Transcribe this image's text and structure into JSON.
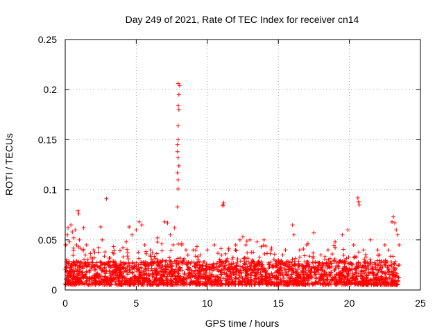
{
  "chart_data": {
    "type": "scatter",
    "title": "Day 249 of 2021, Rate Of TEC Index for receiver cn14",
    "xlabel": "GPS time / hours",
    "ylabel": "ROTI / TECUs",
    "xlim": [
      0,
      25
    ],
    "ylim": [
      0,
      0.25
    ],
    "x_ticks": [
      0,
      5,
      10,
      15,
      20,
      25
    ],
    "y_ticks": [
      0,
      0.05,
      0.1,
      0.15,
      0.2,
      0.25
    ],
    "x_tick_labels": [
      "0",
      "5",
      "10",
      "15",
      "20",
      "25"
    ],
    "y_tick_labels": [
      "0",
      "0.05",
      "0.1",
      "0.15",
      "0.2",
      "0.25"
    ],
    "grid": true,
    "marker": "+",
    "color": "#ff0000",
    "data_extent_x": [
      0,
      23.5
    ],
    "series": [
      {
        "name": "ROTI",
        "points": [
          [
            0.05,
            0.045
          ],
          [
            0.1,
            0.03
          ],
          [
            0.15,
            0.055
          ],
          [
            0.2,
            0.062
          ],
          [
            0.3,
            0.048
          ],
          [
            0.4,
            0.065
          ],
          [
            0.5,
            0.058
          ],
          [
            0.6,
            0.052
          ],
          [
            0.7,
            0.06
          ],
          [
            0.8,
            0.045
          ],
          [
            0.9,
            0.079
          ],
          [
            0.95,
            0.076
          ],
          [
            1.0,
            0.05
          ],
          [
            1.3,
            0.062
          ],
          [
            1.5,
            0.045
          ],
          [
            2.0,
            0.04
          ],
          [
            2.5,
            0.063
          ],
          [
            2.6,
            0.05
          ],
          [
            2.8,
            0.038
          ],
          [
            2.9,
            0.091
          ],
          [
            4.3,
            0.048
          ],
          [
            4.5,
            0.063
          ],
          [
            4.7,
            0.055
          ],
          [
            5.0,
            0.06
          ],
          [
            5.2,
            0.068
          ],
          [
            5.4,
            0.065
          ],
          [
            5.6,
            0.045
          ],
          [
            6.0,
            0.04
          ],
          [
            6.5,
            0.052
          ],
          [
            6.8,
            0.046
          ],
          [
            7.0,
            0.068
          ],
          [
            7.2,
            0.067
          ],
          [
            7.4,
            0.055
          ],
          [
            7.6,
            0.045
          ],
          [
            7.7,
            0.062
          ],
          [
            7.9,
            0.083
          ],
          [
            7.95,
            0.101
          ],
          [
            7.95,
            0.11
          ],
          [
            7.9,
            0.117
          ],
          [
            8.0,
            0.124
          ],
          [
            7.95,
            0.132
          ],
          [
            7.9,
            0.138
          ],
          [
            7.95,
            0.15
          ],
          [
            7.9,
            0.145
          ],
          [
            7.95,
            0.164
          ],
          [
            8.0,
            0.18
          ],
          [
            7.95,
            0.184
          ],
          [
            8.0,
            0.195
          ],
          [
            8.05,
            0.204
          ],
          [
            7.95,
            0.206
          ],
          [
            8.2,
            0.045
          ],
          [
            8.5,
            0.04
          ],
          [
            9.0,
            0.04
          ],
          [
            9.5,
            0.035
          ],
          [
            10.0,
            0.04
          ],
          [
            10.5,
            0.045
          ],
          [
            11.1,
            0.084
          ],
          [
            11.15,
            0.087
          ],
          [
            11.1,
            0.085
          ],
          [
            11.5,
            0.04
          ],
          [
            12.0,
            0.045
          ],
          [
            12.3,
            0.05
          ],
          [
            12.5,
            0.053
          ],
          [
            13.0,
            0.05
          ],
          [
            13.5,
            0.048
          ],
          [
            14.0,
            0.05
          ],
          [
            14.5,
            0.04
          ],
          [
            15.0,
            0.03
          ],
          [
            15.5,
            0.04
          ],
          [
            16.0,
            0.065
          ],
          [
            16.1,
            0.055
          ],
          [
            16.5,
            0.04
          ],
          [
            17.0,
            0.045
          ],
          [
            17.5,
            0.057
          ],
          [
            18.0,
            0.035
          ],
          [
            18.5,
            0.04
          ],
          [
            19.0,
            0.048
          ],
          [
            19.5,
            0.055
          ],
          [
            19.9,
            0.06
          ],
          [
            20.3,
            0.045
          ],
          [
            20.6,
            0.092
          ],
          [
            20.65,
            0.088
          ],
          [
            20.7,
            0.085
          ],
          [
            21.0,
            0.04
          ],
          [
            21.5,
            0.05
          ],
          [
            22.0,
            0.04
          ],
          [
            22.5,
            0.045
          ],
          [
            23.0,
            0.068
          ],
          [
            23.1,
            0.073
          ],
          [
            23.2,
            0.067
          ],
          [
            23.3,
            0.06
          ],
          [
            23.4,
            0.055
          ],
          [
            23.5,
            0.045
          ]
        ],
        "baseline_note_values": [
          0.005,
          0.02
        ]
      }
    ]
  }
}
